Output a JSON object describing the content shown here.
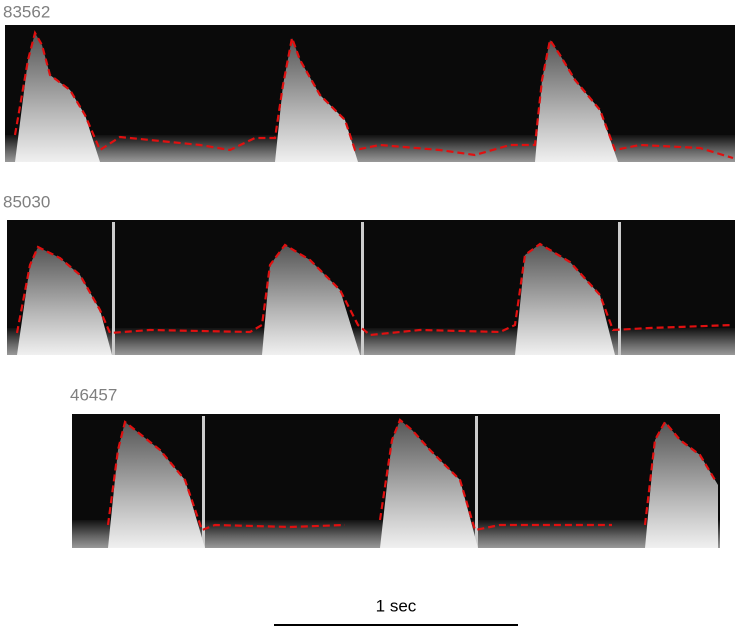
{
  "panels": [
    {
      "label": "83562"
    },
    {
      "label": "85030"
    },
    {
      "label": "46457"
    }
  ],
  "scale_bar": {
    "label": "1 sec"
  }
}
